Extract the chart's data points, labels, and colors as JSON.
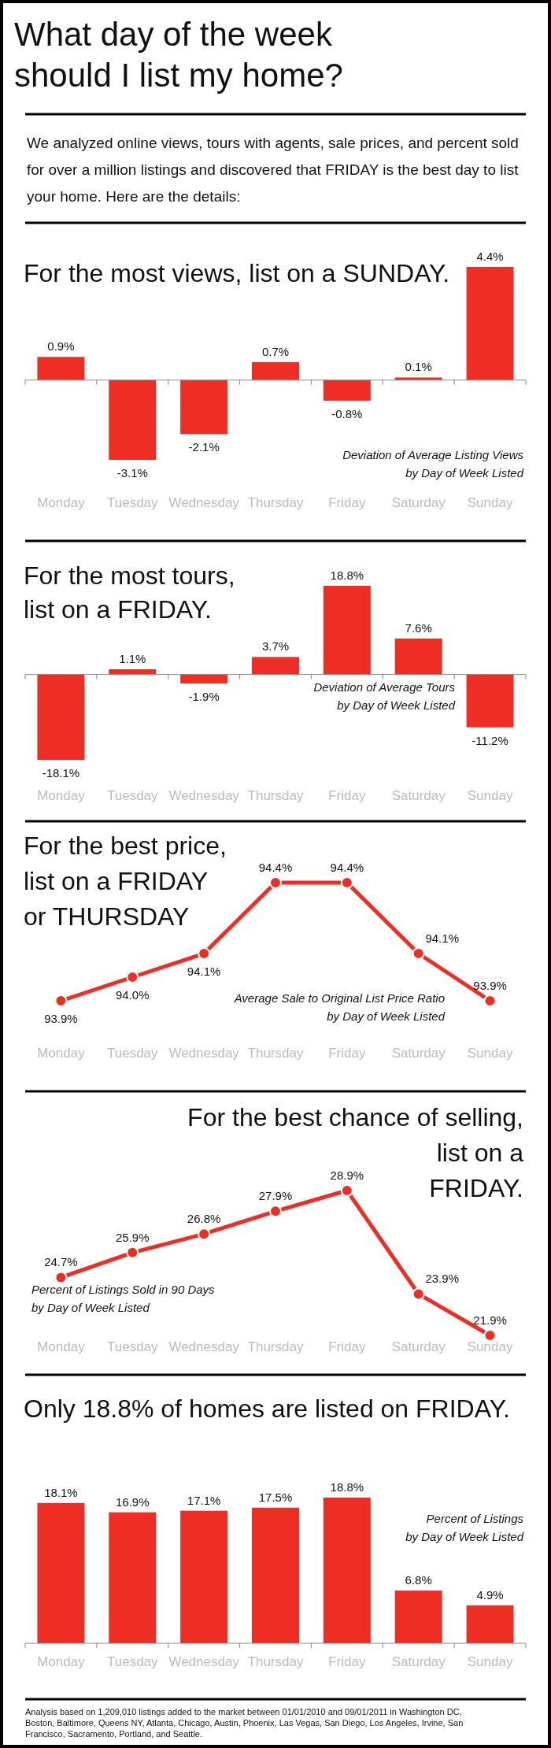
{
  "chart_data": [
    {
      "type": "other",
      "title": "What day of the week should I list my home?",
      "subtitle": "We analyzed online views, tours with agents, sale prices, and percent sold for over a million listings and discovered that FRIDAY is the best day to list your home.  Here are the details:"
    },
    {
      "type": "bar",
      "title": "For the most views, list on a SUNDAY.",
      "categories": [
        "Monday",
        "Tuesday",
        "Wednesday",
        "Thursday",
        "Friday",
        "Saturday",
        "Sunday"
      ],
      "values": [
        0.9,
        -3.1,
        -2.1,
        0.7,
        -0.8,
        0.1,
        4.4
      ],
      "value_labels": [
        "0.9%",
        "-3.1%",
        "-2.1%",
        "0.7%",
        "-0.8%",
        "0.1%",
        "4.4%"
      ],
      "color": "#ee2e24",
      "annotations": [
        "Deviation of Average Listing Views by Day of Week Listed"
      ]
    },
    {
      "type": "bar",
      "title": "For the most tours, list on a FRIDAY.",
      "categories": [
        "Monday",
        "Tuesday",
        "Wednesday",
        "Thursday",
        "Friday",
        "Saturday",
        "Sunday"
      ],
      "values": [
        -18.1,
        1.1,
        -1.9,
        3.7,
        18.8,
        7.6,
        -11.2
      ],
      "value_labels": [
        "-18.1%",
        "1.1%",
        "-1.9%",
        "3.7%",
        "18.8%",
        "7.6%",
        "-11.2%"
      ],
      "color": "#ee2e24",
      "annotations": [
        "Deviation of Average Tours by Day of Week Listed"
      ]
    },
    {
      "type": "line",
      "title": "For the best price, list on a FRIDAY or THURSDAY",
      "categories": [
        "Monday",
        "Tuesday",
        "Wednesday",
        "Thursday",
        "Friday",
        "Saturday",
        "Sunday"
      ],
      "values": [
        93.9,
        94.0,
        94.1,
        94.4,
        94.4,
        94.1,
        93.9
      ],
      "value_labels": [
        "93.9%",
        "94.0%",
        "94.1%",
        "94.4%",
        "94.4%",
        "94.1%",
        "93.9%"
      ],
      "color": "#ee2e24",
      "marker": "circle",
      "annotations": [
        "Average Sale to Original List Price Ratio by Day of Week Listed"
      ]
    },
    {
      "type": "line",
      "title": "For the best chance of selling, list on a FRIDAY.",
      "categories": [
        "Monday",
        "Tuesday",
        "Wednesday",
        "Thursday",
        "Friday",
        "Saturday",
        "Sunday"
      ],
      "values": [
        24.7,
        25.9,
        26.8,
        27.9,
        28.9,
        23.9,
        21.9
      ],
      "value_labels": [
        "24.7%",
        "25.9%",
        "26.8%",
        "27.9%",
        "28.9%",
        "23.9%",
        "21.9%"
      ],
      "color": "#ee2e24",
      "marker": "circle",
      "annotations": [
        "Percent of Listings Sold in 90 Days by Day of Week Listed"
      ]
    },
    {
      "type": "bar",
      "title": "Only 18.8% of homes are listed on FRIDAY.",
      "categories": [
        "Monday",
        "Tuesday",
        "Wednesday",
        "Thursday",
        "Friday",
        "Saturday",
        "Sunday"
      ],
      "values": [
        18.1,
        16.9,
        17.1,
        17.5,
        18.8,
        6.8,
        4.9
      ],
      "value_labels": [
        "18.1%",
        "16.9%",
        "17.1%",
        "17.5%",
        "18.8%",
        "6.8%",
        "4.9%"
      ],
      "color": "#ee2e24",
      "annotations": [
        "Percent of Listings by Day of Week Listed",
        "Analysis based on 1,209,010 listings added to the market between 01/01/2010 and 09/01/2011 in Washington DC, Boston, Baltimore, Queens NY, Atlanta, Chicago, Austin, Phoenix, Las Vegas, San Diego, Los Angeles, Irvine, San Francisco, Sacramento, Portland, and Seattle."
      ]
    }
  ]
}
